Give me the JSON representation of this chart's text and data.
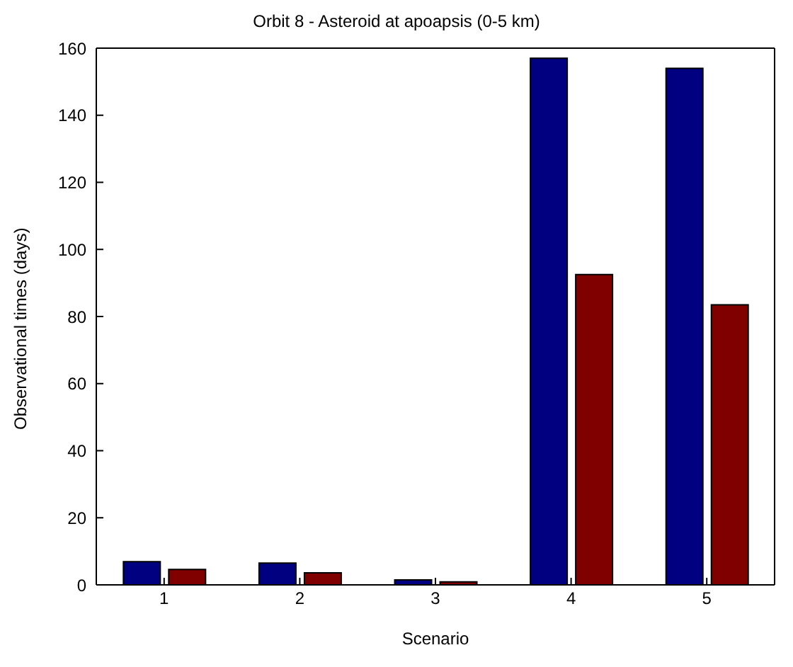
{
  "chart_data": {
    "type": "bar",
    "title": "Orbit 8 - Asteroid at apoapsis (0-5 km)",
    "xlabel": "Scenario",
    "ylabel": "Observational times (days)",
    "categories": [
      "1",
      "2",
      "3",
      "4",
      "5"
    ],
    "series": [
      {
        "color": "#000080",
        "values": [
          6.9,
          6.5,
          1.5,
          157,
          154
        ]
      },
      {
        "color": "#800000",
        "values": [
          4.6,
          3.6,
          0.9,
          92.5,
          83.5
        ]
      }
    ],
    "ylim": [
      0,
      160
    ],
    "yticks": [
      0,
      20,
      40,
      60,
      80,
      100,
      120,
      140,
      160
    ],
    "grid": false,
    "legend": false
  }
}
